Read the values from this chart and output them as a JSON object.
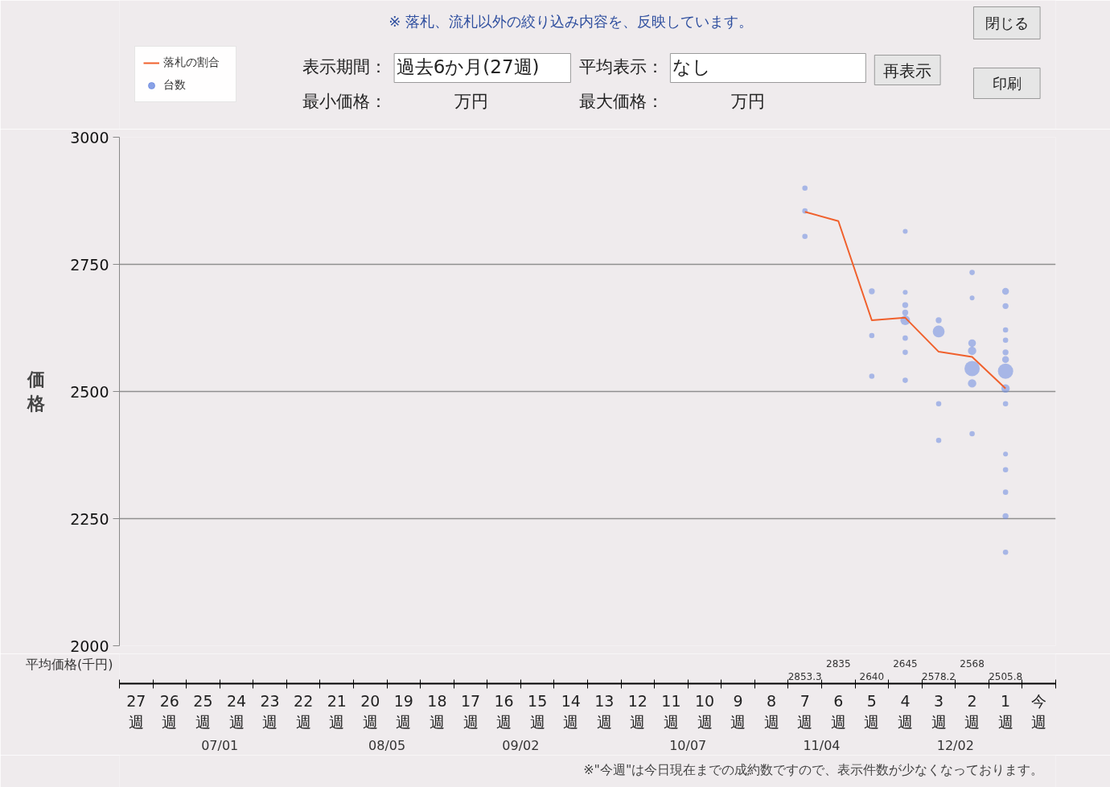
{
  "chart_data": {
    "type": "line",
    "ylabel": "価格",
    "categories": [
      "27週",
      "26週",
      "25週",
      "24週",
      "23週",
      "22週",
      "21週",
      "20週",
      "19週",
      "18週",
      "17週",
      "16週",
      "15週",
      "14週",
      "13週",
      "12週",
      "11週",
      "10週",
      "9週",
      "8週",
      "7週",
      "6週",
      "5週",
      "4週",
      "3週",
      "2週",
      "1週",
      "今週"
    ],
    "series": [
      {
        "name": "落札の割合",
        "color": "#f0602c",
        "x": [
          "7週",
          "6週",
          "5週",
          "4週",
          "3週",
          "2週",
          "1週"
        ],
        "values": [
          2853.3,
          2835,
          2640,
          2645,
          2578.2,
          2568,
          2505.8
        ]
      },
      {
        "name": "台数",
        "type": "bubble",
        "color": "#6c8ae0",
        "x": [
          "7週",
          "7週",
          "7週",
          "5週",
          "5週",
          "5週",
          "4週",
          "4週",
          "4週",
          "4週",
          "4週",
          "4週",
          "4週",
          "4週",
          "3週",
          "3週",
          "3週",
          "3週",
          "2週",
          "2週",
          "2週",
          "2週",
          "2週",
          "2週",
          "2週",
          "1週",
          "1週",
          "1週",
          "1週",
          "1週",
          "1週",
          "1週",
          "1週",
          "1週",
          "1週",
          "1週",
          "1週",
          "1週",
          "1週"
        ],
        "values": [
          2900,
          2855,
          2805,
          2697,
          2610,
          2530,
          2815,
          2695,
          2670,
          2655,
          2640,
          2605,
          2577,
          2522,
          2640,
          2618,
          2476,
          2404,
          2734,
          2684,
          2595,
          2580,
          2545,
          2516,
          2417,
          2697,
          2668,
          2621,
          2601,
          2577,
          2563,
          2540,
          2506,
          2476,
          2377,
          2346,
          2302,
          2255,
          2184
        ],
        "sizes": [
          0.12,
          0.12,
          0.12,
          0.15,
          0.12,
          0.12,
          0.1,
          0.1,
          0.15,
          0.15,
          0.4,
          0.12,
          0.12,
          0.12,
          0.15,
          0.6,
          0.12,
          0.12,
          0.12,
          0.1,
          0.25,
          0.3,
          1,
          0.3,
          0.12,
          0.2,
          0.15,
          0.12,
          0.12,
          0.15,
          0.2,
          1,
          0.3,
          0.12,
          0.1,
          0.12,
          0.12,
          0.15,
          0.12
        ]
      }
    ],
    "ylim": [
      2000,
      3000
    ],
    "yticks": [
      2000,
      2250,
      2500,
      2750,
      3000
    ],
    "grid": "y",
    "legend": "top left",
    "annotations": [
      "※ 落札、流札以外の絞り込み内容を、反映しています。",
      "表示期間：",
      "過去6か月(27週)",
      "平均表示：",
      "なし",
      "再表示",
      "最小価格：",
      "万円",
      "最大価格：",
      "万円",
      "閉じる",
      "印刷",
      "07/01",
      "08/05",
      "09/02",
      "10/07",
      "11/04",
      "12/02",
      "平均価格(千円)",
      "※\"今週\"は今日現在までの成約数ですので、表示件数が少なくなっております。",
      "2853.3",
      "2835",
      "2640",
      "2645",
      "2578.2",
      "2568",
      "2505.8"
    ]
  }
}
